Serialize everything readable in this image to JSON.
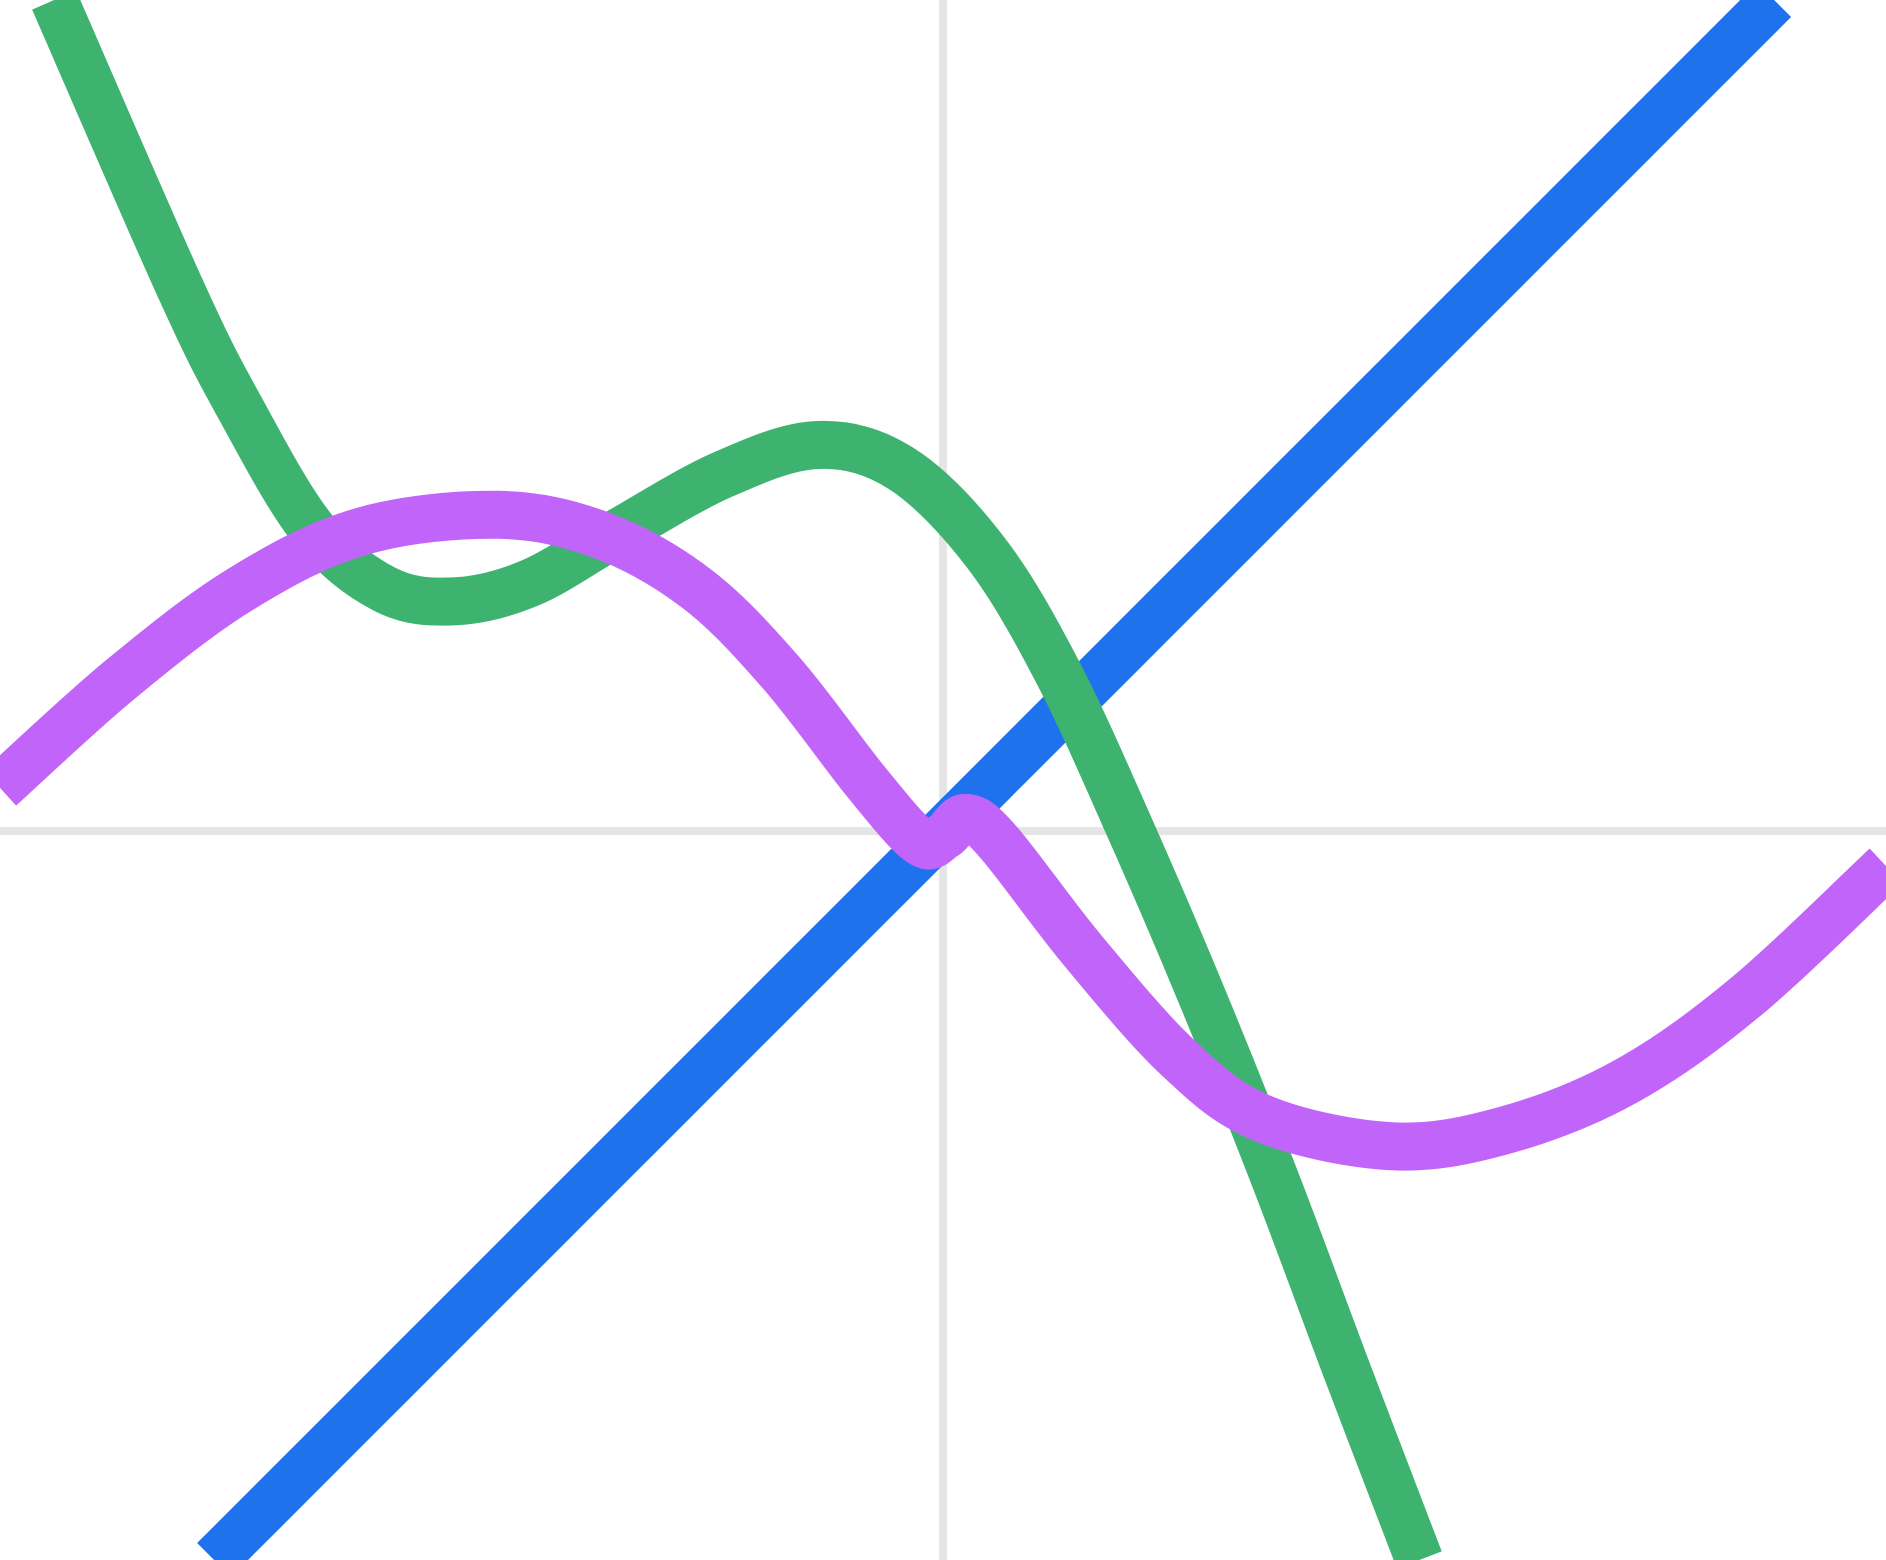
{
  "chart_data": {
    "type": "line",
    "xlim": [
      -7.84,
      7.84
    ],
    "ylim": [
      -6.06,
      6.91
    ],
    "series": [
      {
        "color": "#1f72ee",
        "x": [
          -6.06,
          6.91
        ],
        "values": [
          -6.06,
          6.91
        ]
      },
      {
        "color": "#3db36f",
        "x": [
          -7.39,
          -6.34,
          -5.84,
          -5.24,
          -4.64,
          -4.07,
          -3.44,
          -2.74,
          -1.84,
          -1.04,
          -0.34,
          0.36,
          0.96,
          1.56,
          2.16,
          2.76,
          3.36,
          3.96
        ],
        "values": [
          6.91,
          4.51,
          3.51,
          2.51,
          2.01,
          1.91,
          2.06,
          2.46,
          2.96,
          3.21,
          3.01,
          2.31,
          1.31,
          0.01,
          -1.39,
          -2.89,
          -4.49,
          -6.06
        ]
      },
      {
        "color": "#c165fa",
        "x": [
          -7.84,
          -6.84,
          -5.84,
          -4.84,
          -3.71,
          -2.84,
          -2.04,
          -1.34,
          -0.64,
          -0.19,
          0.01,
          0.19,
          0.46,
          1.16,
          1.96,
          2.66,
          3.73,
          4.66,
          5.66,
          6.66,
          7.84
        ],
        "values": [
          0.36,
          1.26,
          2.01,
          2.49,
          2.63,
          2.46,
          2.01,
          1.31,
          0.41,
          -0.09,
          -0.04,
          0.11,
          -0.09,
          -0.99,
          -1.89,
          -2.39,
          -2.62,
          -2.49,
          -2.09,
          -1.39,
          -0.29
        ]
      }
    ]
  }
}
